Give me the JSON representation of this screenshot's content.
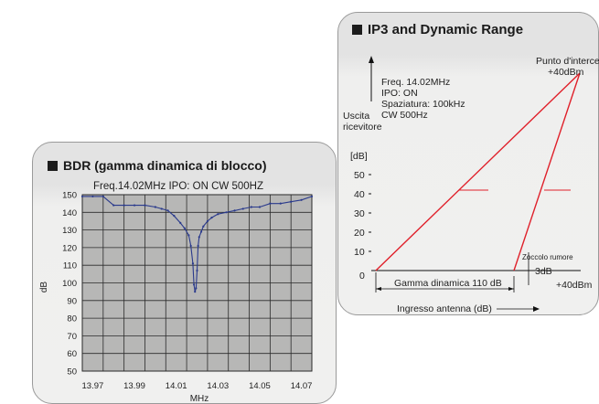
{
  "colors": {
    "ip3_line": "#e0202a",
    "bdr_line": "#2a3a8c",
    "bdr_plot_bg": "#b7b7b6",
    "grid": "#2a2a2a"
  },
  "ip3": {
    "title": "IP3 and Dynamic Range",
    "icon": "black-square-icon",
    "params": [
      "Freq. 14.02MHz",
      "IPO: ON",
      "Spaziatura: 100kHz",
      "CW 500Hz"
    ],
    "y_axis_label_lines": [
      "Uscita",
      "ricevitore"
    ],
    "y_unit": "[dB]",
    "y_ticks": [
      "50",
      "40",
      "30",
      "20",
      "10",
      "0"
    ],
    "intercept_lines": [
      "Punto d'intercetta",
      "+40dBm"
    ],
    "noise_floor_label": "Zoccolo rumore",
    "noise_floor_value": "3dB",
    "dynamic_range_label": "Gamma dinamica 110 dB",
    "right_value": "+40dBm",
    "x_axis_label": "Ingresso antenna (dB)"
  },
  "chart_data": {
    "type": "line",
    "title": "BDR (gamma dinamica di blocco)",
    "subtitle": "Freq.14.02MHz IPO: ON CW 500HZ",
    "xlabel": "MHz",
    "ylabel": "dB",
    "x_ticks": [
      "13.97",
      "13.99",
      "14.01",
      "14.03",
      "14.05",
      "14.07"
    ],
    "y_ticks": [
      150,
      140,
      130,
      120,
      110,
      100,
      90,
      80,
      70,
      60,
      50
    ],
    "xlim": [
      13.965,
      14.075
    ],
    "ylim": [
      50,
      150
    ],
    "grid": true,
    "series": [
      {
        "x": [
          13.965,
          13.97,
          13.975,
          13.98,
          13.985,
          13.99,
          13.995,
          14.0,
          14.003,
          14.006,
          14.009,
          14.012,
          14.014,
          14.016,
          14.017,
          14.018,
          14.0185,
          14.019,
          14.0195,
          14.02,
          14.0205,
          14.021,
          14.022,
          14.023,
          14.025,
          14.027,
          14.03,
          14.034,
          14.038,
          14.042,
          14.046,
          14.05,
          14.055,
          14.06,
          14.065,
          14.07,
          14.075
        ],
        "y": [
          149,
          149,
          149,
          144,
          144,
          144,
          144,
          143,
          142,
          141,
          138,
          134,
          131,
          127,
          121,
          111,
          99,
          95,
          97,
          107,
          121,
          126,
          129,
          132,
          135,
          137,
          139,
          140,
          141,
          142,
          143,
          143,
          145,
          145,
          146,
          147,
          149
        ]
      }
    ]
  }
}
